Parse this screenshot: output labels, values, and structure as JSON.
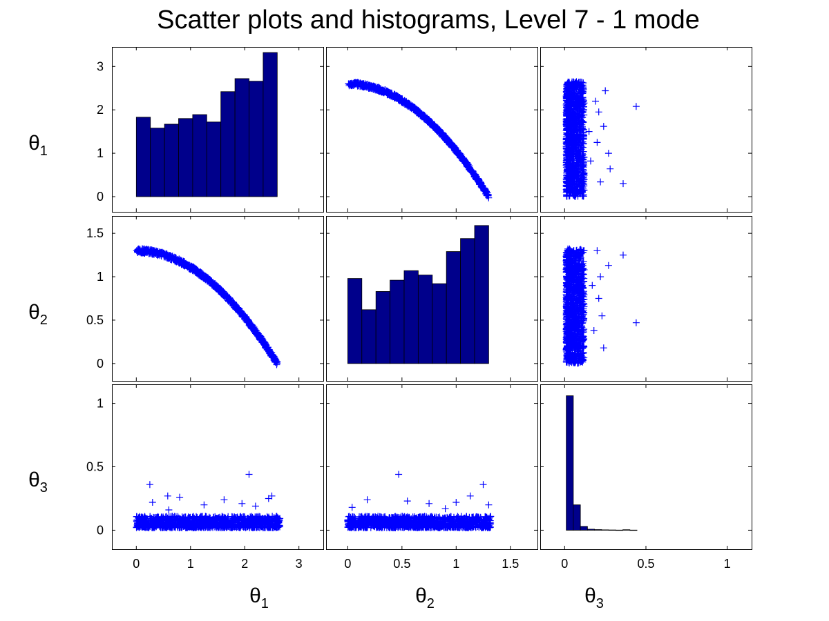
{
  "figure": {
    "title": "Scatter plots and histograms, Level 7 - 1 mode",
    "variables": [
      "θ1",
      "θ2",
      "θ3"
    ],
    "variable_symbol": "θ",
    "variable_subscripts": [
      "1",
      "2",
      "3"
    ]
  },
  "colors": {
    "bar_fill": "#00008B",
    "bar_edge": "#000000",
    "marker": "#0000FF",
    "axes": "#000000",
    "background": "#FFFFFF"
  },
  "chart_data": [
    {
      "id": "hist-theta1",
      "type": "bar",
      "row": 1,
      "col": 1,
      "xlabel": "",
      "ylabel": "θ1",
      "xlim": [
        -0.45,
        3.45
      ],
      "ylim": [
        -0.35,
        3.45
      ],
      "xticks": [],
      "yticks": [
        0,
        1,
        2,
        3
      ],
      "bin_edges": [
        0,
        0.26,
        0.52,
        0.78,
        1.04,
        1.3,
        1.56,
        1.82,
        2.08,
        2.34,
        2.6
      ],
      "values": [
        1.83,
        1.58,
        1.67,
        1.8,
        1.89,
        1.72,
        2.42,
        2.72,
        2.66,
        3.32
      ]
    },
    {
      "id": "scatter-theta2-theta1",
      "type": "scatter",
      "row": 1,
      "col": 2,
      "x_var": "θ2",
      "y_var": "θ1",
      "xlim": [
        -0.2,
        1.75
      ],
      "ylim": [
        -0.35,
        3.45
      ],
      "xticks": [],
      "yticks": [],
      "band": {
        "x_start": 0.0,
        "x_end": 1.3,
        "y_start": 2.6,
        "y_end": 0.0,
        "width": 0.09
      },
      "outliers": []
    },
    {
      "id": "scatter-theta3-theta1",
      "type": "scatter",
      "row": 1,
      "col": 3,
      "x_var": "θ3",
      "y_var": "θ1",
      "xlim": [
        -0.15,
        1.15
      ],
      "ylim": [
        -0.35,
        3.45
      ],
      "xticks": [],
      "yticks": [],
      "cluster": {
        "x_min": 0.01,
        "x_max": 0.12,
        "y_min": 0.0,
        "y_max": 2.65
      },
      "outliers": [
        [
          0.44,
          2.08
        ],
        [
          0.36,
          0.3
        ],
        [
          0.28,
          0.64
        ],
        [
          0.27,
          1.0
        ],
        [
          0.25,
          2.44
        ],
        [
          0.21,
          1.95
        ],
        [
          0.22,
          0.34
        ],
        [
          0.24,
          1.62
        ],
        [
          0.2,
          1.25
        ],
        [
          0.19,
          2.2
        ],
        [
          0.16,
          0.82
        ],
        [
          0.15,
          1.5
        ]
      ]
    },
    {
      "id": "scatter-theta1-theta2",
      "type": "scatter",
      "row": 2,
      "col": 1,
      "x_var": "θ1",
      "y_var": "θ2",
      "xlim": [
        -0.45,
        3.45
      ],
      "ylim": [
        -0.2,
        1.7
      ],
      "xticks": [],
      "yticks": [
        0,
        0.5,
        1,
        1.5
      ],
      "band": {
        "x_start": 0.0,
        "x_end": 2.6,
        "y_start": 1.3,
        "y_end": 0.0,
        "width": 0.05
      },
      "outliers": []
    },
    {
      "id": "hist-theta2",
      "type": "bar",
      "row": 2,
      "col": 2,
      "xlabel": "",
      "ylabel": "θ2",
      "xlim": [
        -0.2,
        1.75
      ],
      "ylim": [
        -0.2,
        1.7
      ],
      "xticks": [],
      "yticks": [],
      "bin_edges": [
        0,
        0.13,
        0.26,
        0.39,
        0.52,
        0.65,
        0.78,
        0.91,
        1.04,
        1.17,
        1.3
      ],
      "values": [
        0.98,
        0.62,
        0.83,
        0.96,
        1.07,
        1.02,
        0.92,
        1.29,
        1.44,
        1.59
      ]
    },
    {
      "id": "scatter-theta3-theta2",
      "type": "scatter",
      "row": 2,
      "col": 3,
      "x_var": "θ3",
      "y_var": "θ2",
      "xlim": [
        -0.15,
        1.15
      ],
      "ylim": [
        -0.2,
        1.7
      ],
      "xticks": [],
      "yticks": [],
      "cluster": {
        "x_min": 0.01,
        "x_max": 0.12,
        "y_min": 0.0,
        "y_max": 1.32
      },
      "outliers": [
        [
          0.44,
          0.47
        ],
        [
          0.36,
          1.25
        ],
        [
          0.27,
          1.13
        ],
        [
          0.24,
          0.18
        ],
        [
          0.23,
          0.55
        ],
        [
          0.22,
          1.0
        ],
        [
          0.21,
          0.75
        ],
        [
          0.2,
          1.3
        ],
        [
          0.18,
          0.38
        ],
        [
          0.17,
          0.9
        ]
      ]
    },
    {
      "id": "scatter-theta1-theta3",
      "type": "scatter",
      "row": 3,
      "col": 1,
      "x_var": "θ1",
      "y_var": "θ3",
      "xlim": [
        -0.45,
        3.45
      ],
      "ylim": [
        -0.15,
        1.15
      ],
      "xticks": [
        0,
        1,
        2,
        3
      ],
      "yticks": [
        0,
        0.5,
        1
      ],
      "cluster": {
        "x_min": 0.0,
        "x_max": 2.65,
        "y_min": 0.02,
        "y_max": 0.11
      },
      "outliers": [
        [
          2.08,
          0.44
        ],
        [
          0.25,
          0.36
        ],
        [
          2.44,
          0.25
        ],
        [
          0.58,
          0.27
        ],
        [
          0.8,
          0.26
        ],
        [
          0.3,
          0.22
        ],
        [
          2.5,
          0.27
        ],
        [
          1.25,
          0.2
        ],
        [
          1.62,
          0.24
        ],
        [
          2.2,
          0.19
        ],
        [
          1.95,
          0.21
        ],
        [
          0.6,
          0.16
        ]
      ]
    },
    {
      "id": "scatter-theta2-theta3",
      "type": "scatter",
      "row": 3,
      "col": 2,
      "x_var": "θ2",
      "y_var": "θ3",
      "xlim": [
        -0.2,
        1.75
      ],
      "ylim": [
        -0.15,
        1.15
      ],
      "xticks": [
        0,
        0.5,
        1,
        1.5
      ],
      "yticks": [],
      "cluster": {
        "x_min": 0.0,
        "x_max": 1.32,
        "y_min": 0.02,
        "y_max": 0.11
      },
      "outliers": [
        [
          0.47,
          0.44
        ],
        [
          1.25,
          0.36
        ],
        [
          1.13,
          0.27
        ],
        [
          0.18,
          0.24
        ],
        [
          0.55,
          0.23
        ],
        [
          1.0,
          0.22
        ],
        [
          0.75,
          0.21
        ],
        [
          1.3,
          0.2
        ],
        [
          0.04,
          0.18
        ],
        [
          0.9,
          0.17
        ]
      ]
    },
    {
      "id": "hist-theta3",
      "type": "bar",
      "row": 3,
      "col": 3,
      "xlabel": "",
      "ylabel": "",
      "xlim": [
        -0.15,
        1.15
      ],
      "ylim": [
        -0.15,
        1.15
      ],
      "xticks": [
        0,
        0.5,
        1
      ],
      "yticks": [],
      "bin_edges": [
        0.01,
        0.0535,
        0.097,
        0.1405,
        0.184,
        0.2275,
        0.271,
        0.3145,
        0.358,
        0.4015,
        0.445
      ],
      "values": [
        1.06,
        0.2,
        0.03,
        0.008,
        0.005,
        0.003,
        0.002,
        0.001,
        0.004,
        0.001
      ]
    }
  ]
}
